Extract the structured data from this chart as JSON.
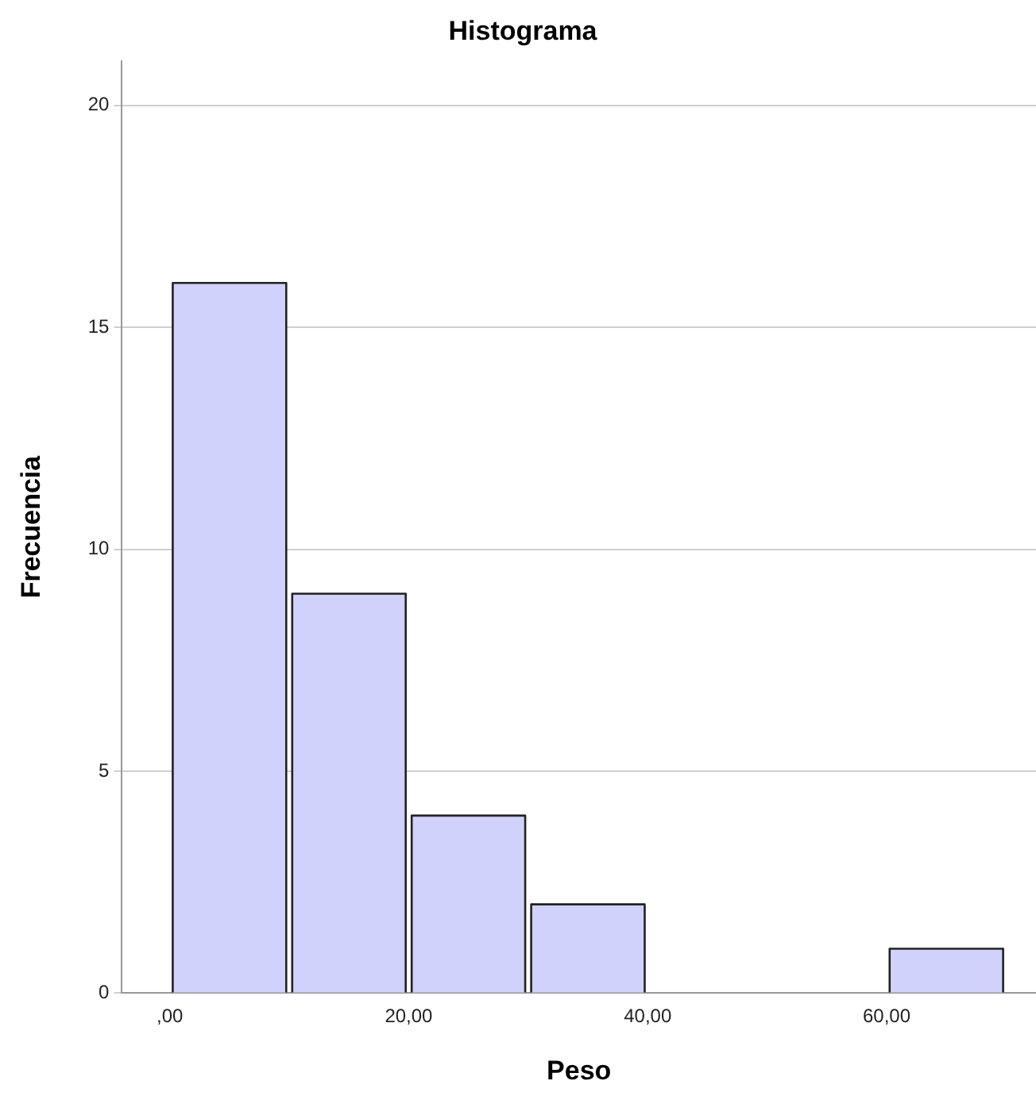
{
  "chart_data": {
    "type": "histogram",
    "title": "Histograma",
    "xlabel": "Peso",
    "ylabel": "Frecuencia",
    "bins": [
      0,
      10,
      20,
      30,
      40,
      50,
      60,
      70
    ],
    "values": [
      16,
      9,
      4,
      2,
      0,
      0,
      1
    ],
    "color": "#d0d2fb",
    "xlim": [
      -4,
      72.5
    ],
    "xticks": [
      {
        "value": 0,
        "label": ",00"
      },
      {
        "value": 20,
        "label": "20,00"
      },
      {
        "value": 40,
        "label": "40,00"
      },
      {
        "value": 60,
        "label": "60,00"
      }
    ],
    "ylim": [
      0,
      21
    ],
    "yticks": [
      0,
      5,
      10,
      15,
      20
    ],
    "grid": "y",
    "legend": false
  }
}
